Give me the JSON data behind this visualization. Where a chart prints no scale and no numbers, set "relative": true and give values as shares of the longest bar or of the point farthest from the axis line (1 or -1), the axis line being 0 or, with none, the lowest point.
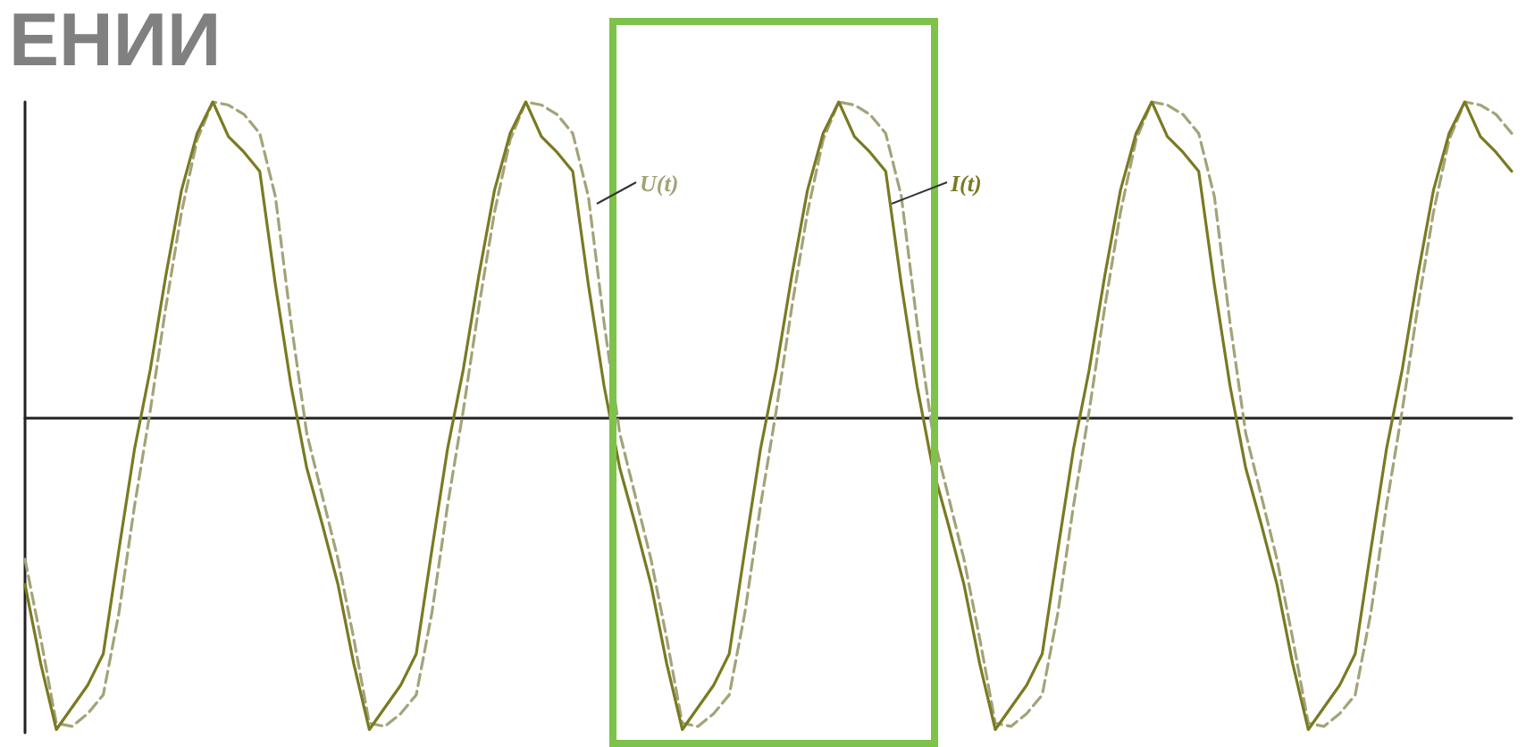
{
  "chart_data": {
    "type": "line",
    "title": "ЕНИИ",
    "relative": true,
    "marker": "none",
    "categories": [
      null,
      null,
      null,
      null,
      null,
      null,
      null,
      null,
      null,
      null,
      null,
      null,
      null,
      null,
      null,
      null,
      null,
      null,
      null,
      null,
      null,
      null,
      null,
      null,
      null,
      null,
      null,
      null,
      null,
      null,
      null,
      null,
      null,
      null,
      null,
      null,
      null,
      null,
      null,
      null,
      null,
      null,
      null,
      null,
      null,
      null,
      null,
      null,
      null,
      null,
      null,
      null,
      null,
      null,
      null,
      null,
      null,
      null,
      null,
      null,
      null,
      null,
      null,
      null,
      null,
      null,
      null,
      null,
      null,
      null,
      null,
      null,
      null,
      null,
      null,
      null,
      null,
      null,
      null,
      null,
      null,
      null,
      null,
      null,
      null,
      null,
      null,
      null,
      null,
      null,
      null,
      null,
      null,
      null,
      null,
      null
    ],
    "series": [
      {
        "name": "U(t)",
        "color": "#a3a37a",
        "line_style": "dashed",
        "values": [
          -0.45,
          -0.7,
          -0.97,
          -0.98,
          -0.94,
          -0.88,
          -0.62,
          -0.28,
          0.02,
          0.35,
          0.65,
          0.88,
          1.0,
          0.99,
          0.96,
          0.9,
          0.7,
          0.3,
          -0.05,
          -0.25,
          -0.45,
          -0.7,
          -0.97,
          -0.98,
          -0.94,
          -0.88,
          -0.62,
          -0.28,
          0.02,
          0.35,
          0.65,
          0.88,
          1.0,
          0.99,
          0.96,
          0.9,
          0.7,
          0.3,
          -0.05,
          -0.25,
          -0.45,
          -0.7,
          -0.97,
          -0.98,
          -0.94,
          -0.88,
          -0.62,
          -0.28,
          0.02,
          0.35,
          0.65,
          0.88,
          1.0,
          0.99,
          0.96,
          0.9,
          0.7,
          0.3,
          -0.05,
          -0.25,
          -0.45,
          -0.7,
          -0.97,
          -0.98,
          -0.94,
          -0.88,
          -0.62,
          -0.28,
          0.02,
          0.35,
          0.65,
          0.88,
          1.0,
          0.99,
          0.96,
          0.9,
          0.7,
          0.3,
          -0.05,
          -0.25,
          -0.45,
          -0.7,
          -0.97,
          -0.98,
          -0.94,
          -0.88,
          -0.62,
          -0.28,
          0.02,
          0.35,
          0.65,
          0.88,
          1.0,
          0.99,
          0.96,
          0.9
        ]
      },
      {
        "name": "I(t)",
        "color": "#7a7a22",
        "line_style": "solid",
        "values": [
          -0.53,
          -0.78,
          -0.99,
          -0.92,
          -0.85,
          -0.75,
          -0.42,
          -0.1,
          0.15,
          0.45,
          0.72,
          0.9,
          1.0,
          0.89,
          0.84,
          0.78,
          0.42,
          0.1,
          -0.16,
          -0.34,
          -0.53,
          -0.78,
          -0.99,
          -0.92,
          -0.85,
          -0.75,
          -0.42,
          -0.1,
          0.15,
          0.45,
          0.72,
          0.9,
          1.0,
          0.89,
          0.84,
          0.78,
          0.42,
          0.1,
          -0.16,
          -0.34,
          -0.53,
          -0.78,
          -0.99,
          -0.92,
          -0.85,
          -0.75,
          -0.42,
          -0.1,
          0.15,
          0.45,
          0.72,
          0.9,
          1.0,
          0.89,
          0.84,
          0.78,
          0.42,
          0.1,
          -0.16,
          -0.34,
          -0.53,
          -0.78,
          -0.99,
          -0.92,
          -0.85,
          -0.75,
          -0.42,
          -0.1,
          0.15,
          0.45,
          0.72,
          0.9,
          1.0,
          0.89,
          0.84,
          0.78,
          0.42,
          0.1,
          -0.16,
          -0.34,
          -0.53,
          -0.78,
          -0.99,
          -0.92,
          -0.85,
          -0.75,
          -0.42,
          -0.1,
          0.15,
          0.45,
          0.72,
          0.9,
          1.0,
          0.89,
          0.84,
          0.78
        ]
      }
    ]
  }
}
